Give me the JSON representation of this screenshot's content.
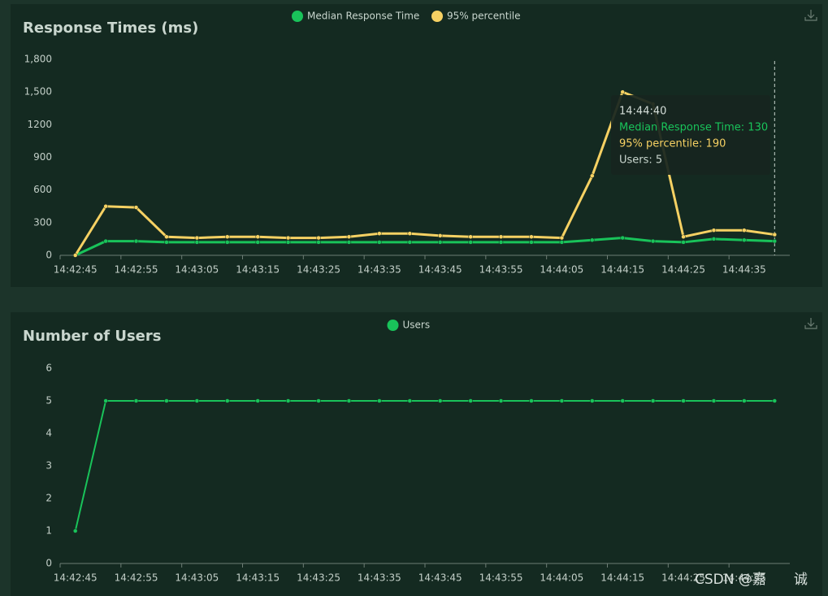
{
  "chart_data": [
    {
      "type": "line",
      "title": "Response Times (ms)",
      "categories": [
        "14:42:45",
        null,
        "14:42:55",
        null,
        "14:43:05",
        null,
        "14:43:15",
        null,
        "14:43:25",
        null,
        "14:43:35",
        null,
        "14:43:45",
        null,
        "14:43:55",
        null,
        "14:44:05",
        null,
        "14:44:15",
        null,
        "14:44:25",
        null,
        "14:44:35",
        null
      ],
      "series": [
        {
          "name": "Median Response Time",
          "color": "#19c35a",
          "values": [
            0,
            130,
            130,
            120,
            120,
            120,
            120,
            120,
            120,
            120,
            120,
            120,
            120,
            120,
            120,
            120,
            120,
            140,
            160,
            130,
            120,
            150,
            140,
            130
          ]
        },
        {
          "name": "95% percentile",
          "color": "#f6d163",
          "values": [
            0,
            450,
            440,
            170,
            160,
            170,
            170,
            160,
            160,
            170,
            200,
            200,
            180,
            170,
            170,
            170,
            160,
            730,
            1500,
            1390,
            170,
            230,
            230,
            190
          ]
        }
      ],
      "ylim": [
        0,
        1800
      ],
      "yticks": [
        0,
        300,
        600,
        900,
        1200,
        {
          "value": 1500,
          "label": "1,500"
        },
        {
          "value": 1800,
          "label": "1,800"
        }
      ],
      "tooltip": {
        "title": "14:44:40",
        "lines": [
          "Median Response Time: 130",
          "95% percentile: 190",
          "Users: 5"
        ]
      }
    },
    {
      "type": "line",
      "title": "Number of Users",
      "categories": [
        "14:42:45",
        null,
        "14:42:55",
        null,
        "14:43:05",
        null,
        "14:43:15",
        null,
        "14:43:25",
        null,
        "14:43:35",
        null,
        "14:43:45",
        null,
        "14:43:55",
        null,
        "14:44:05",
        null,
        "14:44:15",
        null,
        "14:44:25",
        null,
        "14:44:35",
        null
      ],
      "series": [
        {
          "name": "Users",
          "color": "#19c35a",
          "values": [
            1,
            5,
            5,
            5,
            5,
            5,
            5,
            5,
            5,
            5,
            5,
            5,
            5,
            5,
            5,
            5,
            5,
            5,
            5,
            5,
            5,
            5,
            5,
            5
          ]
        }
      ],
      "ylim": [
        0,
        6
      ],
      "yticks": [
        0,
        1,
        2,
        3,
        4,
        5,
        6
      ]
    }
  ],
  "watermark": "CSDN @嘉　　诚"
}
